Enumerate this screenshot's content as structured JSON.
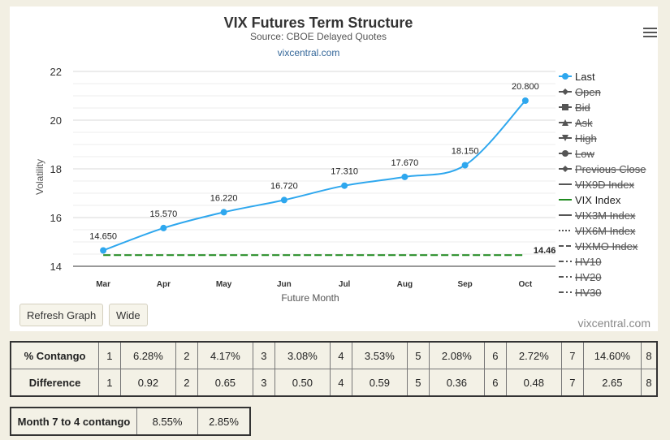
{
  "chart_data": {
    "type": "line",
    "title": "VIX Futures Term Structure",
    "subtitle": "Source: CBOE Delayed Quotes",
    "link_text": "vixcentral.com",
    "credits": "vixcentral.com",
    "xlabel": "Future Month",
    "ylabel": "Volatility",
    "categories": [
      "Mar",
      "Apr",
      "May",
      "Jun",
      "Jul",
      "Aug",
      "Sep",
      "Oct"
    ],
    "ylim": [
      14,
      22
    ],
    "yticks": [
      14,
      16,
      18,
      20,
      22
    ],
    "grid": true,
    "legend_position": "right",
    "series": [
      {
        "name": "Last",
        "values": [
          14.65,
          15.57,
          16.22,
          16.72,
          17.31,
          17.67,
          18.15,
          20.8
        ],
        "labels": [
          "14.650",
          "15.570",
          "16.220",
          "16.720",
          "17.310",
          "17.670",
          "18.150",
          "20.800"
        ],
        "color": "#2ea7ee"
      },
      {
        "name": "VIX Index",
        "value": 14.46,
        "label": "14.46",
        "color": "#1f8a1f",
        "style": "dashed"
      }
    ],
    "legend": [
      {
        "name": "Last",
        "marker": "circle",
        "line": "solid",
        "enabled": true,
        "color": "#2ea7ee"
      },
      {
        "name": "Open",
        "marker": "diamond",
        "line": "solid",
        "enabled": false,
        "color": "#555555"
      },
      {
        "name": "Bid",
        "marker": "square",
        "line": "solid",
        "enabled": false,
        "color": "#555555"
      },
      {
        "name": "Ask",
        "marker": "triangle",
        "line": "solid",
        "enabled": false,
        "color": "#555555"
      },
      {
        "name": "High",
        "marker": "triangle-down",
        "line": "solid",
        "enabled": false,
        "color": "#555555"
      },
      {
        "name": "Low",
        "marker": "circle",
        "line": "solid",
        "enabled": false,
        "color": "#555555"
      },
      {
        "name": "Previous Close",
        "marker": "diamond",
        "line": "solid",
        "enabled": false,
        "color": "#555555"
      },
      {
        "name": "VIX9D Index",
        "marker": "none",
        "line": "solid",
        "enabled": false,
        "color": "#555555"
      },
      {
        "name": "VIX Index",
        "marker": "none",
        "line": "solid",
        "enabled": true,
        "color": "#1f8a1f"
      },
      {
        "name": "VIX3M Index",
        "marker": "none",
        "line": "solid",
        "enabled": false,
        "color": "#555555"
      },
      {
        "name": "VIX6M Index",
        "marker": "none",
        "line": "dotted",
        "enabled": false,
        "color": "#555555"
      },
      {
        "name": "VIXMO Index",
        "marker": "none",
        "line": "dashed",
        "enabled": false,
        "color": "#555555"
      },
      {
        "name": "HV10",
        "marker": "none",
        "line": "dashdot",
        "enabled": false,
        "color": "#555555"
      },
      {
        "name": "HV20",
        "marker": "none",
        "line": "dashdot",
        "enabled": false,
        "color": "#555555"
      },
      {
        "name": "HV30",
        "marker": "none",
        "line": "dashdot",
        "enabled": false,
        "color": "#555555"
      }
    ]
  },
  "buttons": {
    "refresh": "Refresh Graph",
    "wide": "Wide"
  },
  "contango_table": {
    "rows": [
      {
        "label": "% Contango",
        "cells": [
          "1",
          "6.28%",
          "2",
          "4.17%",
          "3",
          "3.08%",
          "4",
          "3.53%",
          "5",
          "2.08%",
          "6",
          "2.72%",
          "7",
          "14.60%",
          "8"
        ]
      },
      {
        "label": "Difference",
        "cells": [
          "1",
          "0.92",
          "2",
          "0.65",
          "3",
          "0.50",
          "4",
          "0.59",
          "5",
          "0.36",
          "6",
          "0.48",
          "7",
          "2.65",
          "8"
        ]
      }
    ]
  },
  "month_table": {
    "label": "Month 7 to 4 contango",
    "v1": "8.55%",
    "v2": "2.85%"
  }
}
